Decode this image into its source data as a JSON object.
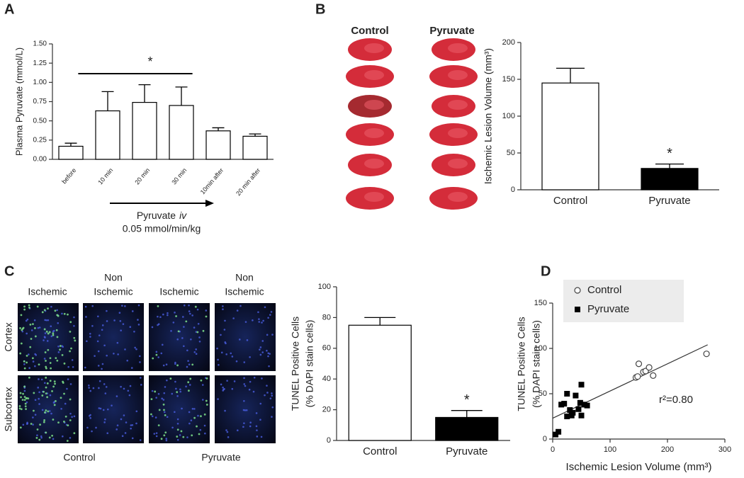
{
  "chart_data": [
    {
      "type": "bar",
      "panel": "A",
      "categories": [
        "before",
        "10 min",
        "20 min",
        "30 min",
        "10min after",
        "20 min after"
      ],
      "values": [
        0.17,
        0.63,
        0.74,
        0.7,
        0.37,
        0.3
      ],
      "errors": [
        0.04,
        0.25,
        0.23,
        0.24,
        0.04,
        0.03
      ],
      "colors": [
        "#ffffff",
        "#ffffff",
        "#ffffff",
        "#ffffff",
        "#ffffff",
        "#ffffff"
      ],
      "ylim": [
        0,
        1.5
      ],
      "yticks": [
        {
          "value": 0,
          "label": "0.00"
        },
        {
          "value": 0.25,
          "label": "0.25"
        },
        {
          "value": 0.5,
          "label": "0.50"
        },
        {
          "value": 0.75,
          "label": "0.75"
        },
        {
          "value": 1,
          "label": "1.00"
        },
        {
          "value": 1.25,
          "label": "1.25"
        },
        {
          "value": 1.5,
          "label": "1.50"
        }
      ],
      "y_label": [
        "Plasma Pyruvate (mmol/L)"
      ],
      "annotation": "*",
      "treatment": {
        "label": "Pyruvate",
        "route": "iv",
        "dose": "0.05 mmol/min/kg"
      }
    },
    {
      "type": "bar",
      "panel": "B",
      "image_labels": [
        "Control",
        "Pyruvate"
      ],
      "categories": [
        "Control",
        "Pyruvate"
      ],
      "values": [
        145,
        29
      ],
      "errors": [
        20,
        6
      ],
      "colors": [
        "#ffffff",
        "#000000"
      ],
      "ylim": [
        0,
        200
      ],
      "yticks": [
        0,
        50,
        100,
        150,
        200
      ],
      "y_label": [
        "Ischemic Lesion Volume (mm³)"
      ],
      "annotation": "*"
    },
    {
      "type": "bar",
      "panel": "C",
      "image_columns": [
        [
          "Ischemic"
        ],
        [
          "Non",
          "Ischemic"
        ],
        [
          "Ischemic"
        ],
        [
          "Non",
          "Ischemic"
        ]
      ],
      "image_rows": [
        "Cortex",
        "Subcortex"
      ],
      "image_groups": [
        "Control",
        "Pyruvate"
      ],
      "categories": [
        "Control",
        "Pyruvate"
      ],
      "values": [
        75,
        15
      ],
      "errors": [
        5,
        4.5
      ],
      "colors": [
        "#ffffff",
        "#000000"
      ],
      "ylim": [
        0,
        100
      ],
      "yticks": [
        0,
        20,
        40,
        60,
        80,
        100
      ],
      "y_label": [
        "TUNEL Positive Cells",
        "(% DAPI stain cells)"
      ],
      "annotation": "*"
    },
    {
      "type": "scatter",
      "panel": "D",
      "series": [
        {
          "name": "Control",
          "marker": "open-circle",
          "color": "#444444",
          "x": [
            145,
            148,
            150,
            158,
            162,
            168,
            175,
            268
          ],
          "y": [
            68,
            69,
            83,
            74,
            75,
            79,
            70,
            94
          ]
        },
        {
          "name": "Pyruvate",
          "marker": "square",
          "color": "#000000",
          "x": [
            5,
            10,
            15,
            20,
            25,
            25,
            30,
            33,
            35,
            40,
            45,
            48,
            50,
            50,
            55,
            60
          ],
          "y": [
            5,
            8,
            38,
            39,
            50,
            25,
            32,
            26,
            29,
            48,
            33,
            40,
            60,
            26,
            38,
            37
          ]
        }
      ],
      "trend_line": {
        "x": [
          0,
          270
        ],
        "y": [
          23,
          104
        ]
      },
      "xlim": [
        0,
        300
      ],
      "xticks": [
        0,
        100,
        200,
        300
      ],
      "ylim": [
        0,
        150
      ],
      "yticks": [
        0,
        50,
        100,
        150
      ],
      "x_label": "Ischemic Lesion Volume (mm³)",
      "y_label": [
        "TUNEL Positive Cells",
        "(% DAPI stain cells)"
      ],
      "annotation": "r²=0.80",
      "legend": "upper-left"
    }
  ]
}
